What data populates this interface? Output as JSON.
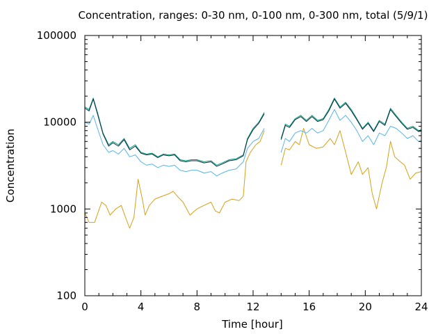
{
  "chart_data": {
    "type": "line",
    "title": "Concentration, ranges: 0-30 nm, 0-100 nm, 0-300 nm, total (5/9/1)",
    "xlabel": "Time [hour]",
    "ylabel": "Concentration",
    "xlim": [
      0,
      24
    ],
    "ylim": [
      100,
      100000
    ],
    "yscale": "log",
    "grid": false,
    "x_ticks": [
      0,
      4,
      8,
      12,
      16,
      20,
      24
    ],
    "x_tick_labels": [
      "0",
      "4",
      "8",
      "12",
      "16",
      "20",
      "24"
    ],
    "y_ticks": [
      100,
      1000,
      10000,
      100000
    ],
    "y_tick_labels": [
      "100",
      "1000",
      "10000",
      "100000"
    ],
    "gap": [
      12.8,
      14.0
    ],
    "series": [
      {
        "color": "#d4a017",
        "points": [
          [
            0,
            900
          ],
          [
            0.3,
            700
          ],
          [
            0.7,
            700
          ],
          [
            1.2,
            1200
          ],
          [
            1.5,
            1100
          ],
          [
            1.8,
            850
          ],
          [
            2.2,
            1000
          ],
          [
            2.6,
            1100
          ],
          [
            2.9,
            800
          ],
          [
            3.2,
            600
          ],
          [
            3.5,
            800
          ],
          [
            3.8,
            2200
          ],
          [
            4.1,
            1300
          ],
          [
            4.3,
            850
          ],
          [
            4.6,
            1100
          ],
          [
            5.0,
            1300
          ],
          [
            5.5,
            1400
          ],
          [
            6.0,
            1500
          ],
          [
            6.3,
            1600
          ],
          [
            6.6,
            1400
          ],
          [
            7.0,
            1200
          ],
          [
            7.5,
            850
          ],
          [
            8.0,
            1000
          ],
          [
            8.5,
            1100
          ],
          [
            9.0,
            1200
          ],
          [
            9.3,
            950
          ],
          [
            9.6,
            900
          ],
          [
            10.0,
            1200
          ],
          [
            10.5,
            1300
          ],
          [
            11.0,
            1250
          ],
          [
            11.3,
            1400
          ],
          [
            11.5,
            3500
          ],
          [
            11.8,
            4500
          ],
          [
            12.2,
            5500
          ],
          [
            12.5,
            6000
          ],
          [
            12.8,
            8000
          ],
          [
            14.0,
            3200
          ],
          [
            14.3,
            5000
          ],
          [
            14.6,
            4800
          ],
          [
            15.0,
            6000
          ],
          [
            15.3,
            5500
          ],
          [
            15.6,
            8500
          ],
          [
            16.0,
            5500
          ],
          [
            16.5,
            5000
          ],
          [
            17.0,
            5200
          ],
          [
            17.5,
            6500
          ],
          [
            17.8,
            5500
          ],
          [
            18.2,
            8000
          ],
          [
            18.6,
            4500
          ],
          [
            19.0,
            2500
          ],
          [
            19.5,
            3500
          ],
          [
            19.8,
            2500
          ],
          [
            20.2,
            3000
          ],
          [
            20.5,
            1500
          ],
          [
            20.8,
            1000
          ],
          [
            21.2,
            2000
          ],
          [
            21.5,
            3000
          ],
          [
            21.8,
            6000
          ],
          [
            22.1,
            4000
          ],
          [
            22.5,
            3500
          ],
          [
            22.8,
            3200
          ],
          [
            23.2,
            2200
          ],
          [
            23.6,
            2600
          ],
          [
            24.0,
            2700
          ]
        ]
      },
      {
        "color": "#56b4e9",
        "points": [
          [
            0,
            10000
          ],
          [
            0.3,
            9500
          ],
          [
            0.6,
            12000
          ],
          [
            0.9,
            8500
          ],
          [
            1.3,
            5500
          ],
          [
            1.7,
            4500
          ],
          [
            2.0,
            4700
          ],
          [
            2.4,
            4300
          ],
          [
            2.8,
            5000
          ],
          [
            3.2,
            4000
          ],
          [
            3.6,
            4200
          ],
          [
            4.0,
            3500
          ],
          [
            4.4,
            3200
          ],
          [
            4.8,
            3300
          ],
          [
            5.2,
            3000
          ],
          [
            5.6,
            3200
          ],
          [
            6.0,
            3100
          ],
          [
            6.4,
            3200
          ],
          [
            6.8,
            2800
          ],
          [
            7.2,
            2700
          ],
          [
            7.6,
            2800
          ],
          [
            8.0,
            2800
          ],
          [
            8.5,
            2600
          ],
          [
            9.0,
            2700
          ],
          [
            9.4,
            2400
          ],
          [
            9.8,
            2600
          ],
          [
            10.3,
            2800
          ],
          [
            10.8,
            2900
          ],
          [
            11.3,
            3500
          ],
          [
            11.6,
            5000
          ],
          [
            12.0,
            6000
          ],
          [
            12.4,
            6500
          ],
          [
            12.8,
            8500
          ],
          [
            14.0,
            4500
          ],
          [
            14.3,
            6500
          ],
          [
            14.6,
            6000
          ],
          [
            15.0,
            7500
          ],
          [
            15.4,
            8000
          ],
          [
            15.8,
            7500
          ],
          [
            16.2,
            8500
          ],
          [
            16.6,
            7500
          ],
          [
            17.0,
            8000
          ],
          [
            17.4,
            10500
          ],
          [
            17.8,
            14000
          ],
          [
            18.2,
            10500
          ],
          [
            18.6,
            12000
          ],
          [
            19.0,
            10000
          ],
          [
            19.4,
            8000
          ],
          [
            19.8,
            6000
          ],
          [
            20.2,
            7000
          ],
          [
            20.6,
            5500
          ],
          [
            21.0,
            7500
          ],
          [
            21.4,
            7000
          ],
          [
            21.8,
            9000
          ],
          [
            22.2,
            8500
          ],
          [
            22.6,
            7500
          ],
          [
            23.0,
            6500
          ],
          [
            23.4,
            7000
          ],
          [
            23.8,
            6000
          ],
          [
            24.0,
            6200
          ]
        ]
      },
      {
        "color": "#009e73",
        "points": [
          [
            0,
            15000
          ],
          [
            0.3,
            14000
          ],
          [
            0.6,
            19000
          ],
          [
            0.9,
            13000
          ],
          [
            1.3,
            7500
          ],
          [
            1.7,
            5500
          ],
          [
            2.0,
            6000
          ],
          [
            2.4,
            5500
          ],
          [
            2.8,
            6500
          ],
          [
            3.2,
            5000
          ],
          [
            3.6,
            5500
          ],
          [
            4.0,
            4500
          ],
          [
            4.4,
            4300
          ],
          [
            4.8,
            4400
          ],
          [
            5.2,
            4000
          ],
          [
            5.6,
            4300
          ],
          [
            6.0,
            4200
          ],
          [
            6.4,
            4300
          ],
          [
            6.8,
            3700
          ],
          [
            7.2,
            3600
          ],
          [
            7.6,
            3700
          ],
          [
            8.0,
            3700
          ],
          [
            8.5,
            3500
          ],
          [
            9.0,
            3600
          ],
          [
            9.4,
            3200
          ],
          [
            9.8,
            3400
          ],
          [
            10.3,
            3700
          ],
          [
            10.8,
            3800
          ],
          [
            11.3,
            4200
          ],
          [
            11.6,
            6500
          ],
          [
            12.0,
            8500
          ],
          [
            12.4,
            10000
          ],
          [
            12.8,
            13000
          ],
          [
            14.0,
            6500
          ],
          [
            14.3,
            9500
          ],
          [
            14.6,
            9000
          ],
          [
            15.0,
            11000
          ],
          [
            15.4,
            12000
          ],
          [
            15.8,
            10500
          ],
          [
            16.2,
            12000
          ],
          [
            16.6,
            10500
          ],
          [
            17.0,
            11000
          ],
          [
            17.4,
            14000
          ],
          [
            17.8,
            19000
          ],
          [
            18.2,
            15000
          ],
          [
            18.6,
            17000
          ],
          [
            19.0,
            14000
          ],
          [
            19.4,
            11000
          ],
          [
            19.8,
            8500
          ],
          [
            20.2,
            10000
          ],
          [
            20.6,
            8000
          ],
          [
            21.0,
            10500
          ],
          [
            21.4,
            9500
          ],
          [
            21.8,
            14500
          ],
          [
            22.2,
            12000
          ],
          [
            22.6,
            10000
          ],
          [
            23.0,
            8500
          ],
          [
            23.4,
            9000
          ],
          [
            23.8,
            8000
          ],
          [
            24.0,
            8200
          ]
        ]
      },
      {
        "color": "#0a2a4a",
        "points": [
          [
            0,
            14500
          ],
          [
            0.3,
            13500
          ],
          [
            0.6,
            18500
          ],
          [
            0.9,
            12500
          ],
          [
            1.3,
            7300
          ],
          [
            1.7,
            5300
          ],
          [
            2.0,
            5800
          ],
          [
            2.4,
            5300
          ],
          [
            2.8,
            6300
          ],
          [
            3.2,
            4800
          ],
          [
            3.6,
            5300
          ],
          [
            4.0,
            4400
          ],
          [
            4.4,
            4200
          ],
          [
            4.8,
            4300
          ],
          [
            5.2,
            3900
          ],
          [
            5.6,
            4200
          ],
          [
            6.0,
            4100
          ],
          [
            6.4,
            4200
          ],
          [
            6.8,
            3600
          ],
          [
            7.2,
            3500
          ],
          [
            7.6,
            3600
          ],
          [
            8.0,
            3600
          ],
          [
            8.5,
            3400
          ],
          [
            9.0,
            3500
          ],
          [
            9.4,
            3100
          ],
          [
            9.8,
            3300
          ],
          [
            10.3,
            3600
          ],
          [
            10.8,
            3700
          ],
          [
            11.3,
            4100
          ],
          [
            11.6,
            6300
          ],
          [
            12.0,
            8200
          ],
          [
            12.4,
            9700
          ],
          [
            12.8,
            12500
          ],
          [
            14.0,
            6300
          ],
          [
            14.3,
            9200
          ],
          [
            14.6,
            8700
          ],
          [
            15.0,
            10700
          ],
          [
            15.4,
            11600
          ],
          [
            15.8,
            10200
          ],
          [
            16.2,
            11600
          ],
          [
            16.6,
            10200
          ],
          [
            17.0,
            10700
          ],
          [
            17.4,
            13500
          ],
          [
            17.8,
            18500
          ],
          [
            18.2,
            14500
          ],
          [
            18.6,
            16500
          ],
          [
            19.0,
            13500
          ],
          [
            19.4,
            10700
          ],
          [
            19.8,
            8300
          ],
          [
            20.2,
            9700
          ],
          [
            20.6,
            7800
          ],
          [
            21.0,
            10200
          ],
          [
            21.4,
            9200
          ],
          [
            21.8,
            14000
          ],
          [
            22.2,
            11600
          ],
          [
            22.6,
            9700
          ],
          [
            23.0,
            8300
          ],
          [
            23.4,
            8700
          ],
          [
            23.8,
            7800
          ],
          [
            24.0,
            7900
          ]
        ]
      }
    ]
  }
}
